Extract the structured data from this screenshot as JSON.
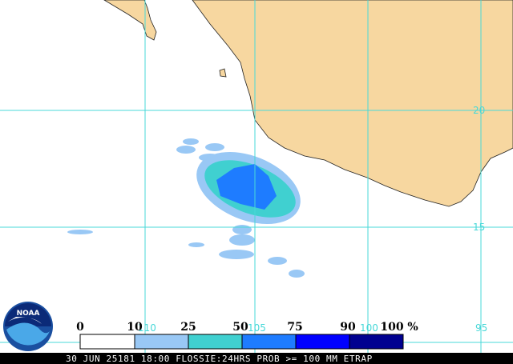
{
  "grid_labels": {
    "lat": [
      "20",
      "15"
    ],
    "lon": [
      "110",
      "105",
      "100",
      "95"
    ]
  },
  "legend": {
    "labels": [
      "0",
      "10",
      "25",
      "50",
      "75",
      "90",
      "100"
    ],
    "unit": "%"
  },
  "logo": "NOAA",
  "footer": "30 JUN 25181 18:00 FLOSSIE:24HRS PROB >= 100 MM ETRAP"
}
